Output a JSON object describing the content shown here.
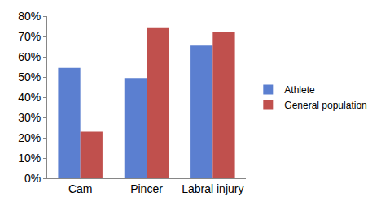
{
  "chart_data": {
    "type": "bar",
    "categories": [
      "Cam",
      "Pincer",
      "Labral injury"
    ],
    "series": [
      {
        "name": "Athlete",
        "color": "#5b7fd0",
        "values": [
          54.5,
          49.5,
          65.5
        ]
      },
      {
        "name": "General population",
        "color": "#c0504d",
        "values": [
          23,
          74.5,
          72
        ]
      }
    ],
    "ylim": [
      0,
      80
    ],
    "yticks": [
      {
        "value": 0,
        "label": "0%"
      },
      {
        "value": 10,
        "label": "10%"
      },
      {
        "value": 20,
        "label": "20%"
      },
      {
        "value": 30,
        "label": "30%"
      },
      {
        "value": 40,
        "label": "40%"
      },
      {
        "value": 50,
        "label": "50%"
      },
      {
        "value": 60,
        "label": "60%"
      },
      {
        "value": 70,
        "label": "70%"
      },
      {
        "value": 80,
        "label": "80%"
      }
    ],
    "grid": false,
    "legend": "right"
  }
}
